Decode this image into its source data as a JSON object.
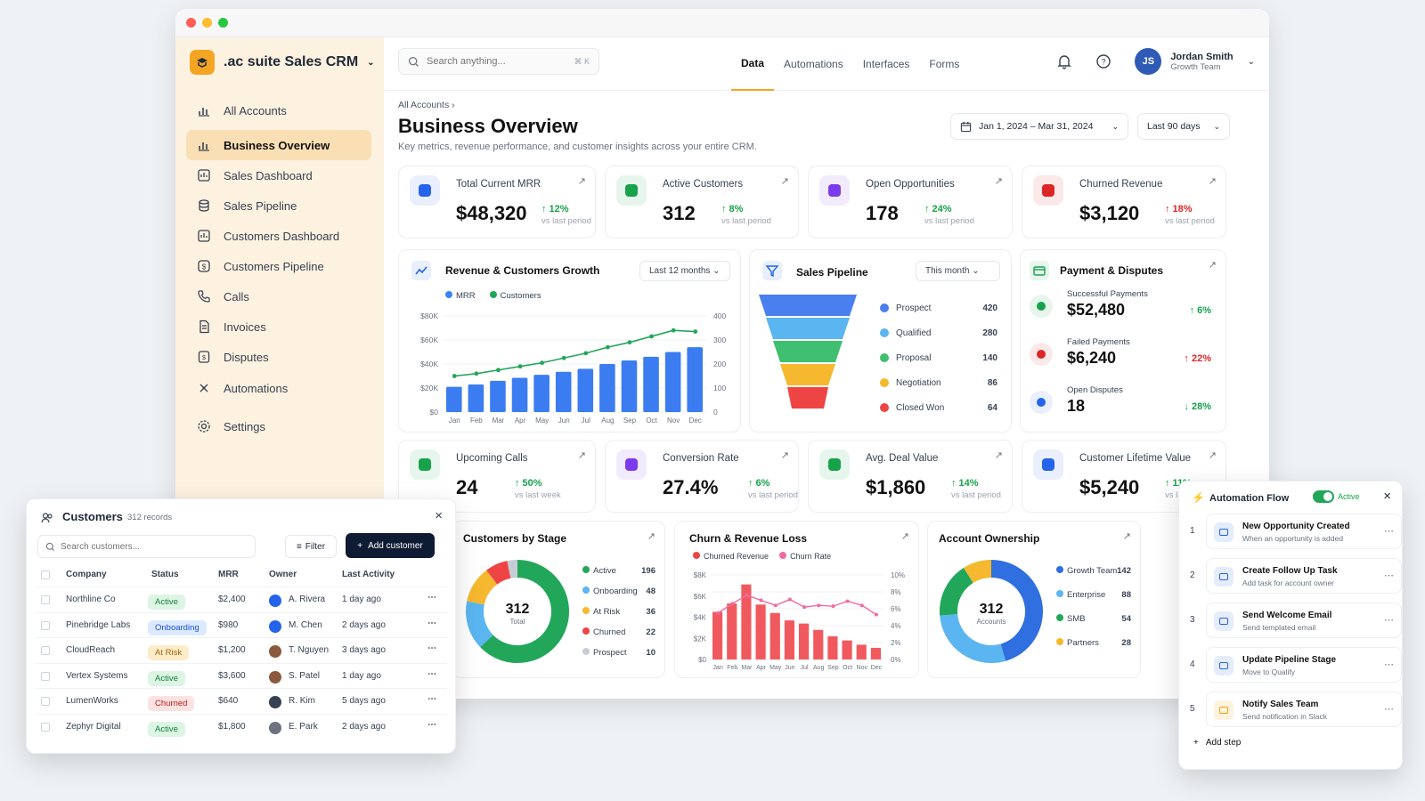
{
  "app": {
    "title": ".ac suite Sales CRM"
  },
  "sidebar": {
    "items": [
      {
        "label": "All Accounts",
        "icon": "bar-chart-icon"
      },
      {
        "label": "Business Overview",
        "icon": "bar-chart-icon",
        "active": true
      },
      {
        "label": "Sales Dashboard",
        "icon": "dashboard-icon"
      },
      {
        "label": "Sales Pipeline",
        "icon": "database-icon"
      },
      {
        "label": "Customers Dashboard",
        "icon": "dashboard-icon"
      },
      {
        "label": "Customers Pipeline",
        "icon": "dollar-circle-icon"
      },
      {
        "label": "Calls",
        "icon": "phone-icon"
      },
      {
        "label": "Invoices",
        "icon": "invoice-icon"
      },
      {
        "label": "Disputes",
        "icon": "dispute-icon"
      },
      {
        "label": "Automations",
        "icon": "automation-icon"
      },
      {
        "label": "Settings",
        "icon": "gear-icon"
      }
    ]
  },
  "topbar": {
    "search_placeholder": "Search anything...",
    "search_shortcut": "⌘ K",
    "tabs": [
      "Data",
      "Automations",
      "Interfaces",
      "Forms"
    ],
    "user_initials": "JS",
    "user_name": "Jordan Smith",
    "user_team": "Growth Team"
  },
  "page": {
    "breadcrumb": "All Accounts",
    "title": "Business Overview",
    "subtitle": "Key metrics, revenue performance, and customer insights across your entire CRM.",
    "date_range": "Jan 1, 2024 – Mar 31, 2024",
    "period": "Last 90 days"
  },
  "kpis_top": [
    {
      "title": "Total Current MRR",
      "value": "$48,320",
      "delta": "↑ 12%",
      "sub": "vs last period",
      "color": "#2563eb",
      "delta_color": "#16a34a"
    },
    {
      "title": "Active Customers",
      "value": "312",
      "delta": "↑ 8%",
      "sub": "vs last period",
      "color": "#16a34a",
      "delta_color": "#16a34a"
    },
    {
      "title": "Open Opportunities",
      "value": "178",
      "delta": "↑ 24%",
      "sub": "vs last period",
      "color": "#7c3aed",
      "delta_color": "#16a34a"
    },
    {
      "title": "Churned Revenue",
      "value": "$3,120",
      "delta": "↑ 18%",
      "sub": "vs last period",
      "color": "#dc2626",
      "delta_color": "#dc2626"
    }
  ],
  "kpis_bottom": [
    {
      "title": "Upcoming Calls",
      "value": "24",
      "delta": "↑ 50%",
      "sub": "vs last week",
      "color": "#16a34a",
      "delta_color": "#16a34a"
    },
    {
      "title": "Conversion Rate",
      "value": "27.4%",
      "delta": "↑ 6%",
      "sub": "vs last period",
      "color": "#7c3aed",
      "delta_color": "#16a34a"
    },
    {
      "title": "Avg. Deal Value",
      "value": "$1,860",
      "delta": "↑ 14%",
      "sub": "vs last period",
      "color": "#16a34a",
      "delta_color": "#16a34a"
    },
    {
      "title": "Customer Lifetime Value",
      "value": "$5,240",
      "delta": "↑ 11%",
      "sub": "vs last period",
      "color": "#2563eb",
      "delta_color": "#16a34a"
    }
  ],
  "revenue_chart": {
    "title": "Revenue & Customers Growth",
    "range_select": "Last 12 months",
    "legend": [
      "MRR",
      "Customers"
    ]
  },
  "pipeline": {
    "title": "Sales Pipeline",
    "range_select": "This month",
    "stages": [
      {
        "name": "Prospect",
        "value": "420",
        "color": "#4a7ff0"
      },
      {
        "name": "Qualified",
        "value": "280",
        "color": "#5bb5f0"
      },
      {
        "name": "Proposal",
        "value": "140",
        "color": "#3fbf6f"
      },
      {
        "name": "Negotiation",
        "value": "86",
        "color": "#f5b82e"
      },
      {
        "name": "Closed Won",
        "value": "64",
        "color": "#ef4444"
      }
    ]
  },
  "payments": {
    "title": "Payment & Disputes",
    "rows": [
      {
        "label": "Successful Payments",
        "value": "$52,480",
        "delta": "↑ 6%",
        "color": "#16a34a",
        "delta_color": "#16a34a"
      },
      {
        "label": "Failed Payments",
        "value": "$6,240",
        "delta": "↑ 22%",
        "color": "#dc2626",
        "delta_color": "#dc2626"
      },
      {
        "label": "Open Disputes",
        "value": "18",
        "delta": "↓ 28%",
        "color": "#2563eb",
        "delta_color": "#16a34a"
      }
    ]
  },
  "stage_donut": {
    "title": "Customers by Stage",
    "center_value": "312",
    "center_label": "Total",
    "segments": [
      {
        "name": "Active",
        "value": 196,
        "color": "#22a75a"
      },
      {
        "name": "Onboarding",
        "value": 48,
        "color": "#5bb5f0"
      },
      {
        "name": "At Risk",
        "value": 36,
        "color": "#f5b82e"
      },
      {
        "name": "Churned",
        "value": 22,
        "color": "#ef4444"
      },
      {
        "name": "Prospect",
        "value": 10,
        "color": "#c7cdd6"
      }
    ]
  },
  "churn_chart": {
    "title": "Churn & Revenue Loss",
    "legend": [
      "Churned Revenue",
      "Churn Rate"
    ]
  },
  "ownership_donut": {
    "title": "Account Ownership",
    "center_value": "312",
    "center_label": "Accounts",
    "segments": [
      {
        "name": "Growth Team",
        "value": 142,
        "color": "#2f6fe0"
      },
      {
        "name": "Enterprise",
        "value": 88,
        "color": "#5bb5f0"
      },
      {
        "name": "SMB",
        "value": 54,
        "color": "#22a75a"
      },
      {
        "name": "Partners",
        "value": 28,
        "color": "#f5b82e"
      }
    ]
  },
  "customers_panel": {
    "title": "Customers",
    "count": "312 records",
    "search_placeholder": "Search customers...",
    "filter_label": "Filter",
    "add_label": "Add customer",
    "columns": [
      "Company",
      "Status",
      "MRR",
      "Owner",
      "Last Activity"
    ],
    "rows": [
      {
        "company": "Northline Co",
        "status": "Active",
        "mrr": "$2,400",
        "owner": "A. Rivera",
        "activity": "1 day ago"
      },
      {
        "company": "Pinebridge Labs",
        "status": "Onboarding",
        "mrr": "$980",
        "owner": "M. Chen",
        "activity": "2 days ago"
      },
      {
        "company": "CloudReach",
        "status": "At Risk",
        "mrr": "$1,200",
        "owner": "T. Nguyen",
        "activity": "3 days ago"
      },
      {
        "company": "Vertex Systems",
        "status": "Active",
        "mrr": "$3,600",
        "owner": "S. Patel",
        "activity": "1 day ago"
      },
      {
        "company": "LumenWorks",
        "status": "Churned",
        "mrr": "$640",
        "owner": "R. Kim",
        "activity": "5 days ago"
      },
      {
        "company": "Zephyr Digital",
        "status": "Active",
        "mrr": "$1,800",
        "owner": "E. Park",
        "activity": "2 days ago"
      }
    ]
  },
  "automation": {
    "title": "Automation Flow",
    "toggle_label": "Active",
    "add_step": "Add step",
    "steps": [
      {
        "num": "1",
        "title": "New Opportunity Created",
        "sub": "When an opportunity is added",
        "color": "#2563eb"
      },
      {
        "num": "2",
        "title": "Create Follow Up Task",
        "sub": "Add task for account owner",
        "color": "#2563eb"
      },
      {
        "num": "3",
        "title": "Send Welcome Email",
        "sub": "Send templated email",
        "color": "#2563eb"
      },
      {
        "num": "4",
        "title": "Update Pipeline Stage",
        "sub": "Move to Qualify",
        "color": "#2563eb"
      },
      {
        "num": "5",
        "title": "Notify Sales Team",
        "sub": "Send notification in Slack",
        "color": "#f59e0b"
      }
    ]
  },
  "chart_data": [
    {
      "type": "bar",
      "title": "Revenue & Customers Growth",
      "categories": [
        "Jan",
        "Feb",
        "Mar",
        "Apr",
        "May",
        "Jun",
        "Jul",
        "Aug",
        "Sep",
        "Oct",
        "Nov",
        "Dec"
      ],
      "series": [
        {
          "name": "MRR",
          "axis": "left",
          "values": [
            21000,
            23000,
            26000,
            28500,
            31000,
            33500,
            36000,
            40000,
            43000,
            46000,
            50000,
            54000
          ]
        },
        {
          "name": "Customers",
          "axis": "right",
          "values": [
            150,
            160,
            175,
            190,
            205,
            225,
            245,
            270,
            290,
            315,
            340,
            335
          ]
        }
      ],
      "ylim_left": [
        0,
        80000
      ],
      "yticks_left": [
        "$0",
        "$20K",
        "$40K",
        "$60K",
        "$80K"
      ],
      "ylim_right": [
        0,
        400
      ],
      "yticks_right": [
        "0",
        "100",
        "200",
        "300",
        "400"
      ]
    },
    {
      "type": "bar",
      "title": "Churn & Revenue Loss",
      "categories": [
        "Jan",
        "Feb",
        "Mar",
        "Apr",
        "May",
        "Jun",
        "Jul",
        "Aug",
        "Sep",
        "Oct",
        "Nov",
        "Dec"
      ],
      "series": [
        {
          "name": "Churned Revenue",
          "axis": "left",
          "values": [
            4500,
            5300,
            7100,
            5200,
            4400,
            3700,
            3400,
            2800,
            2200,
            1800,
            1400,
            1100
          ]
        },
        {
          "name": "Churn Rate",
          "axis": "right",
          "values": [
            5.5,
            6.6,
            7.6,
            7.0,
            6.4,
            7.1,
            6.2,
            6.4,
            6.3,
            6.9,
            6.4,
            5.3
          ]
        }
      ],
      "ylim_left": [
        0,
        8000
      ],
      "yticks_left": [
        "$0",
        "$2K",
        "$4K",
        "$6K",
        "$8K"
      ],
      "ylim_right": [
        0,
        10
      ],
      "yticks_right": [
        "0%",
        "2%",
        "4%",
        "6%",
        "8%",
        "10%"
      ]
    }
  ]
}
